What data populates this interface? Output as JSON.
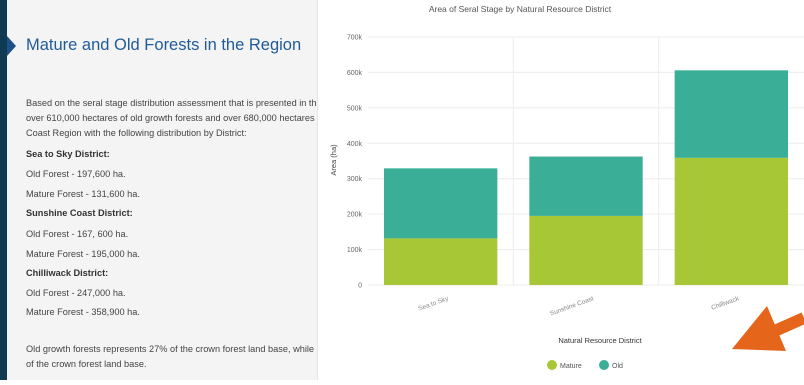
{
  "article": {
    "title": "Mature and Old Forests in the Region",
    "intro_line1": "Based on the seral stage distribution assessment that is presented in th",
    "intro_line2": "over 610,000 hectares of old growth forests and over 680,000 hectares",
    "intro_line3": "Coast Region with the following distribution by District:",
    "districts": [
      {
        "heading": "Sea to Sky District:",
        "old": "Old Forest - 197,600 ha.",
        "mature": "Mature Forest - 131,600 ha."
      },
      {
        "heading": "Sunshine Coast District:",
        "old": "Old Forest - 167, 600 ha.",
        "mature": "Mature Forest - 195,000 ha."
      },
      {
        "heading": "Chilliwack District:",
        "old": "Old Forest - 247,000 ha.",
        "mature": "Mature Forest - 358,900 ha."
      }
    ],
    "footer_line1": "Old growth forests represents 27% of the crown forest land base, while",
    "footer_line2": "of the crown forest land base."
  },
  "colors": {
    "mature": "#a8c736",
    "old": "#3aae96",
    "title": "#1f5b99",
    "arrow": "#e5651b"
  },
  "chart_data": {
    "type": "bar",
    "stacked": true,
    "title": "Area of Seral Stage by Natural Resource District",
    "xlabel": "Natural Resource District",
    "ylabel": "Area (ha)",
    "categories": [
      "Sea to Sky",
      "Sunshine Coast",
      "Chilliwack"
    ],
    "series": [
      {
        "name": "Mature",
        "values": [
          131600,
          195000,
          358900
        ]
      },
      {
        "name": "Old",
        "values": [
          197600,
          167600,
          247000
        ]
      }
    ],
    "ylim": [
      0,
      700000
    ],
    "yticks": [
      0,
      100000,
      200000,
      300000,
      400000,
      500000,
      600000,
      700000
    ],
    "ytick_labels": [
      "0",
      "100k",
      "200k",
      "300k",
      "400k",
      "500k",
      "600k",
      "700k"
    ],
    "grid": true,
    "legend_position": "bottom"
  }
}
